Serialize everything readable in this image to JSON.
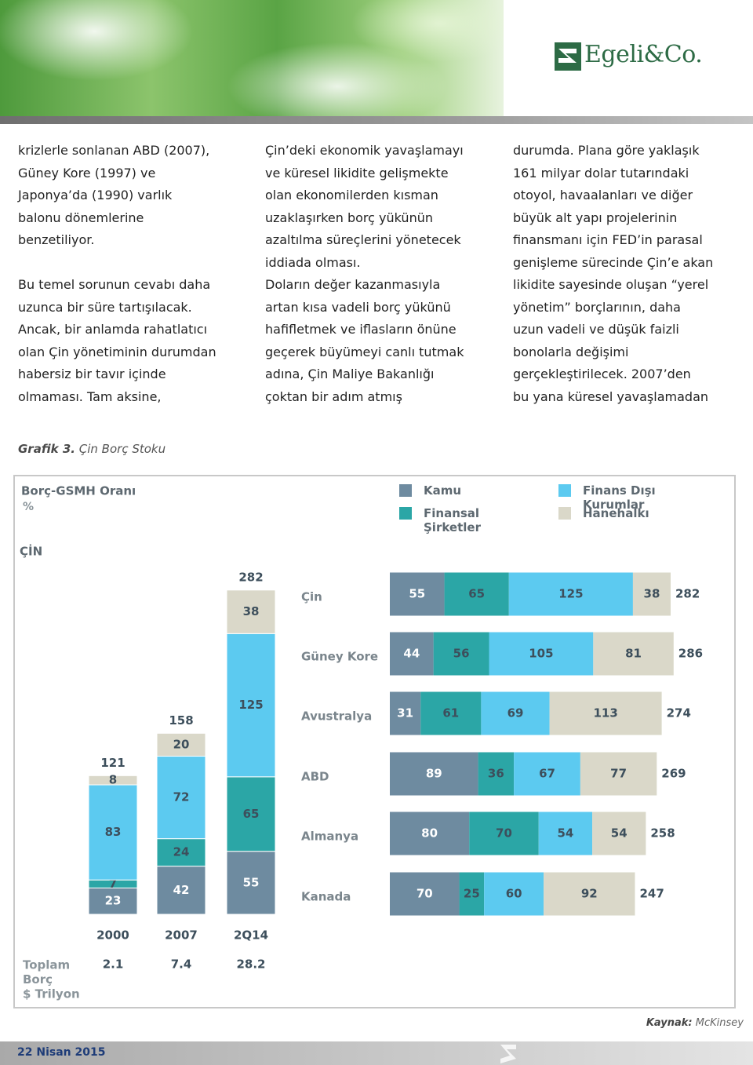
{
  "header": {
    "logo": "Egeli&Co."
  },
  "columns": [
    [
      [
        "krizlerle sonlanan ABD (2007),",
        "Güney Kore (1997) ve",
        "Japonya’da (1990) varlık",
        "balonu dönemlerine",
        "benzetiliyor."
      ],
      [
        "Bu temel sorunun cevabı daha",
        "uzunca bir süre tartışılacak.",
        "Ancak, bir anlamda rahatlatıcı",
        "olan Çin yönetiminin durumdan",
        "habersiz bir tavır içinde",
        "olmaması. Tam aksine,"
      ]
    ],
    [
      [
        "Çin’deki ekonomik yavaşlamayı",
        "ve küresel likidite gelişmekte",
        "olan ekonomilerden kısman",
        "uzaklaşırken borç yükünün",
        "azaltılma süreçlerini yönetecek",
        "iddiada olması."
      ],
      [
        "Doların değer kazanmasıyla",
        "artan kısa vadeli borç yükünü",
        "hafifletmek ve iflasların önüne",
        "geçerek büyümeyi canlı tutmak",
        "adına, Çin Maliye Bakanlığı",
        "çoktan bir adım atmış"
      ]
    ],
    [
      [
        "durumda. Plana göre yaklaşık",
        "161 milyar dolar tutarındaki",
        "otoyol, havaalanları ve diğer",
        "büyük alt yapı projelerinin",
        "finansmanı için FED’in parasal",
        "genişleme sürecinde Çin’e akan",
        "likidite sayesinde oluşan “yerel",
        "yönetim” borçlarının, daha",
        "uzun vadeli ve düşük faizli",
        "bonolarla değişimi",
        "gerçekleştirilecek. 2007’den",
        "bu yana küresel yavaşlamadan"
      ]
    ]
  ],
  "figure": {
    "label": "Grafik 3.",
    "title": "Çin Borç Stoku"
  },
  "chart_data": [
    {
      "type": "bar",
      "stacked": true,
      "title": "Borç-GSMH Oranı",
      "unit": "%",
      "subtitle": "ÇİN",
      "categories": [
        "2000",
        "2007",
        "2Q14"
      ],
      "series": [
        {
          "name": "Kamu",
          "color": "#6e8ba0",
          "values": [
            23,
            42,
            55
          ]
        },
        {
          "name": "Finansal Şirketler",
          "color": "#2ba6a6",
          "values": [
            7,
            24,
            65
          ]
        },
        {
          "name": "Finans Dışı Kurumlar",
          "color": "#5ccaf0",
          "values": [
            83,
            72,
            125
          ]
        },
        {
          "name": "Hanehalkı",
          "color": "#dad8c9",
          "values": [
            8,
            20,
            38
          ]
        }
      ],
      "totals": [
        121,
        158,
        282
      ],
      "total_debt_label": [
        "Toplam",
        "Borç",
        "$ Trilyon"
      ],
      "total_debt": [
        2.1,
        7.4,
        28.2
      ]
    },
    {
      "type": "bar",
      "orientation": "horizontal",
      "stacked": true,
      "categories": [
        "Çin",
        "Güney Kore",
        "Avustralya",
        "ABD",
        "Almanya",
        "Kanada"
      ],
      "series": [
        {
          "color": "#6e8ba0",
          "values": [
            55,
            44,
            31,
            89,
            80,
            70
          ]
        },
        {
          "color": "#2ba6a6",
          "values": [
            65,
            56,
            61,
            36,
            70,
            25
          ]
        },
        {
          "color": "#5ccaf0",
          "values": [
            125,
            105,
            69,
            67,
            54,
            60
          ]
        },
        {
          "color": "#dad8c9",
          "values": [
            38,
            81,
            113,
            77,
            54,
            92
          ]
        }
      ],
      "totals": [
        282,
        286,
        274,
        269,
        258,
        247
      ]
    }
  ],
  "source": {
    "label": "Kaynak:",
    "text": "McKinsey"
  },
  "footer": {
    "date": "22 Nisan 2015"
  }
}
